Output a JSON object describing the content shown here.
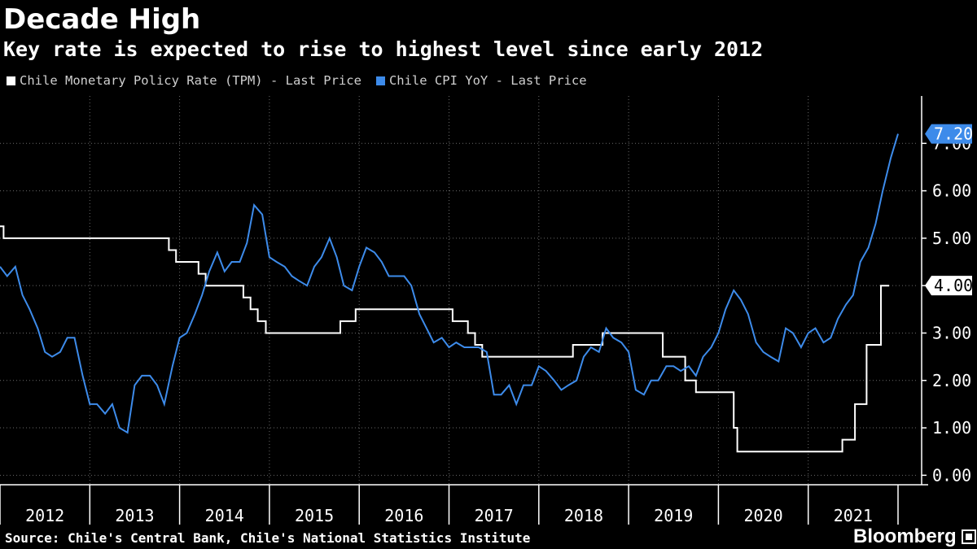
{
  "header": {
    "title": "Decade High",
    "subtitle": "Key rate is expected to rise to highest level since early 2012"
  },
  "footer": {
    "source": "Source: Chile's Central Bank, Chile's National Statistics Institute",
    "logo": "Bloomberg"
  },
  "colors": {
    "background": "#000000",
    "tpm": "#ffffff",
    "cpi": "#3d8bea",
    "grid": "#666666"
  },
  "chart_data": {
    "type": "line",
    "title": "Decade High",
    "subtitle": "Key rate is expected to rise to highest level since early 2012",
    "xlabel": "",
    "ylabel": "",
    "xlim": [
      2012.0,
      2022.0
    ],
    "ylim": [
      -0.2,
      8.0
    ],
    "y_ticks": [
      0,
      1,
      2,
      3,
      4,
      5,
      6,
      7
    ],
    "y_tick_labels": [
      "0.00",
      "1.00",
      "2.00",
      "3.00",
      "4.00",
      "5.00",
      "6.00",
      "7.00"
    ],
    "x_tick_labels": [
      "2012",
      "2013",
      "2014",
      "2015",
      "2016",
      "2017",
      "2018",
      "2019",
      "2020",
      "2021"
    ],
    "grid": true,
    "legend_position": "top-left",
    "series": [
      {
        "name": "Chile Monetary Policy Rate (TPM) - Last Price",
        "color": "#ffffff",
        "step": true,
        "last_value_label": "4.00",
        "points": [
          [
            2012.0,
            5.25
          ],
          [
            2012.04,
            5.0
          ],
          [
            2013.88,
            4.75
          ],
          [
            2013.96,
            4.5
          ],
          [
            2014.21,
            4.25
          ],
          [
            2014.29,
            4.0
          ],
          [
            2014.71,
            3.75
          ],
          [
            2014.79,
            3.5
          ],
          [
            2014.87,
            3.25
          ],
          [
            2014.96,
            3.0
          ],
          [
            2015.79,
            3.25
          ],
          [
            2015.96,
            3.5
          ],
          [
            2017.04,
            3.25
          ],
          [
            2017.21,
            3.0
          ],
          [
            2017.29,
            2.75
          ],
          [
            2017.37,
            2.5
          ],
          [
            2018.38,
            2.75
          ],
          [
            2018.71,
            3.0
          ],
          [
            2019.38,
            2.5
          ],
          [
            2019.63,
            2.0
          ],
          [
            2019.75,
            1.75
          ],
          [
            2020.17,
            1.0
          ],
          [
            2020.21,
            0.5
          ],
          [
            2021.38,
            0.75
          ],
          [
            2021.52,
            1.5
          ],
          [
            2021.65,
            2.75
          ],
          [
            2021.81,
            4.0
          ],
          [
            2021.9,
            4.0
          ]
        ]
      },
      {
        "name": "Chile CPI YoY - Last Price",
        "color": "#3d8bea",
        "step": false,
        "last_value_label": "7.20",
        "points": [
          [
            2012.0,
            4.4
          ],
          [
            2012.08,
            4.2
          ],
          [
            2012.17,
            4.4
          ],
          [
            2012.25,
            3.8
          ],
          [
            2012.33,
            3.5
          ],
          [
            2012.42,
            3.1
          ],
          [
            2012.5,
            2.6
          ],
          [
            2012.58,
            2.5
          ],
          [
            2012.67,
            2.6
          ],
          [
            2012.75,
            2.9
          ],
          [
            2012.83,
            2.9
          ],
          [
            2012.92,
            2.1
          ],
          [
            2013.0,
            1.5
          ],
          [
            2013.08,
            1.5
          ],
          [
            2013.17,
            1.3
          ],
          [
            2013.25,
            1.5
          ],
          [
            2013.33,
            1.0
          ],
          [
            2013.42,
            0.9
          ],
          [
            2013.5,
            1.9
          ],
          [
            2013.58,
            2.1
          ],
          [
            2013.67,
            2.1
          ],
          [
            2013.75,
            1.9
          ],
          [
            2013.83,
            1.5
          ],
          [
            2013.92,
            2.3
          ],
          [
            2014.0,
            2.9
          ],
          [
            2014.08,
            3.0
          ],
          [
            2014.17,
            3.4
          ],
          [
            2014.25,
            3.8
          ],
          [
            2014.33,
            4.3
          ],
          [
            2014.42,
            4.7
          ],
          [
            2014.5,
            4.3
          ],
          [
            2014.58,
            4.5
          ],
          [
            2014.67,
            4.5
          ],
          [
            2014.75,
            4.9
          ],
          [
            2014.83,
            5.7
          ],
          [
            2014.92,
            5.5
          ],
          [
            2015.0,
            4.6
          ],
          [
            2015.08,
            4.5
          ],
          [
            2015.17,
            4.4
          ],
          [
            2015.25,
            4.2
          ],
          [
            2015.33,
            4.1
          ],
          [
            2015.42,
            4.0
          ],
          [
            2015.5,
            4.4
          ],
          [
            2015.58,
            4.6
          ],
          [
            2015.67,
            5.0
          ],
          [
            2015.75,
            4.6
          ],
          [
            2015.83,
            4.0
          ],
          [
            2015.92,
            3.9
          ],
          [
            2016.0,
            4.4
          ],
          [
            2016.08,
            4.8
          ],
          [
            2016.17,
            4.7
          ],
          [
            2016.25,
            4.5
          ],
          [
            2016.33,
            4.2
          ],
          [
            2016.42,
            4.2
          ],
          [
            2016.5,
            4.2
          ],
          [
            2016.58,
            4.0
          ],
          [
            2016.67,
            3.4
          ],
          [
            2016.75,
            3.1
          ],
          [
            2016.83,
            2.8
          ],
          [
            2016.92,
            2.9
          ],
          [
            2017.0,
            2.7
          ],
          [
            2017.08,
            2.8
          ],
          [
            2017.17,
            2.7
          ],
          [
            2017.25,
            2.7
          ],
          [
            2017.33,
            2.7
          ],
          [
            2017.42,
            2.6
          ],
          [
            2017.5,
            1.7
          ],
          [
            2017.58,
            1.7
          ],
          [
            2017.67,
            1.9
          ],
          [
            2017.75,
            1.5
          ],
          [
            2017.83,
            1.9
          ],
          [
            2017.92,
            1.9
          ],
          [
            2018.0,
            2.3
          ],
          [
            2018.08,
            2.2
          ],
          [
            2018.17,
            2.0
          ],
          [
            2018.25,
            1.8
          ],
          [
            2018.33,
            1.9
          ],
          [
            2018.42,
            2.0
          ],
          [
            2018.5,
            2.5
          ],
          [
            2018.58,
            2.7
          ],
          [
            2018.67,
            2.6
          ],
          [
            2018.75,
            3.1
          ],
          [
            2018.83,
            2.9
          ],
          [
            2018.92,
            2.8
          ],
          [
            2019.0,
            2.6
          ],
          [
            2019.08,
            1.8
          ],
          [
            2019.17,
            1.7
          ],
          [
            2019.25,
            2.0
          ],
          [
            2019.33,
            2.0
          ],
          [
            2019.42,
            2.3
          ],
          [
            2019.5,
            2.3
          ],
          [
            2019.58,
            2.2
          ],
          [
            2019.67,
            2.3
          ],
          [
            2019.75,
            2.1
          ],
          [
            2019.83,
            2.5
          ],
          [
            2019.92,
            2.7
          ],
          [
            2020.0,
            3.0
          ],
          [
            2020.08,
            3.5
          ],
          [
            2020.17,
            3.9
          ],
          [
            2020.25,
            3.7
          ],
          [
            2020.33,
            3.4
          ],
          [
            2020.42,
            2.8
          ],
          [
            2020.5,
            2.6
          ],
          [
            2020.58,
            2.5
          ],
          [
            2020.67,
            2.4
          ],
          [
            2020.75,
            3.1
          ],
          [
            2020.83,
            3.0
          ],
          [
            2020.92,
            2.7
          ],
          [
            2021.0,
            3.0
          ],
          [
            2021.08,
            3.1
          ],
          [
            2021.17,
            2.8
          ],
          [
            2021.25,
            2.9
          ],
          [
            2021.33,
            3.3
          ],
          [
            2021.42,
            3.6
          ],
          [
            2021.5,
            3.8
          ],
          [
            2021.58,
            4.5
          ],
          [
            2021.67,
            4.8
          ],
          [
            2021.75,
            5.3
          ],
          [
            2021.83,
            6.0
          ],
          [
            2021.92,
            6.7
          ],
          [
            2022.0,
            7.2
          ]
        ]
      }
    ]
  }
}
